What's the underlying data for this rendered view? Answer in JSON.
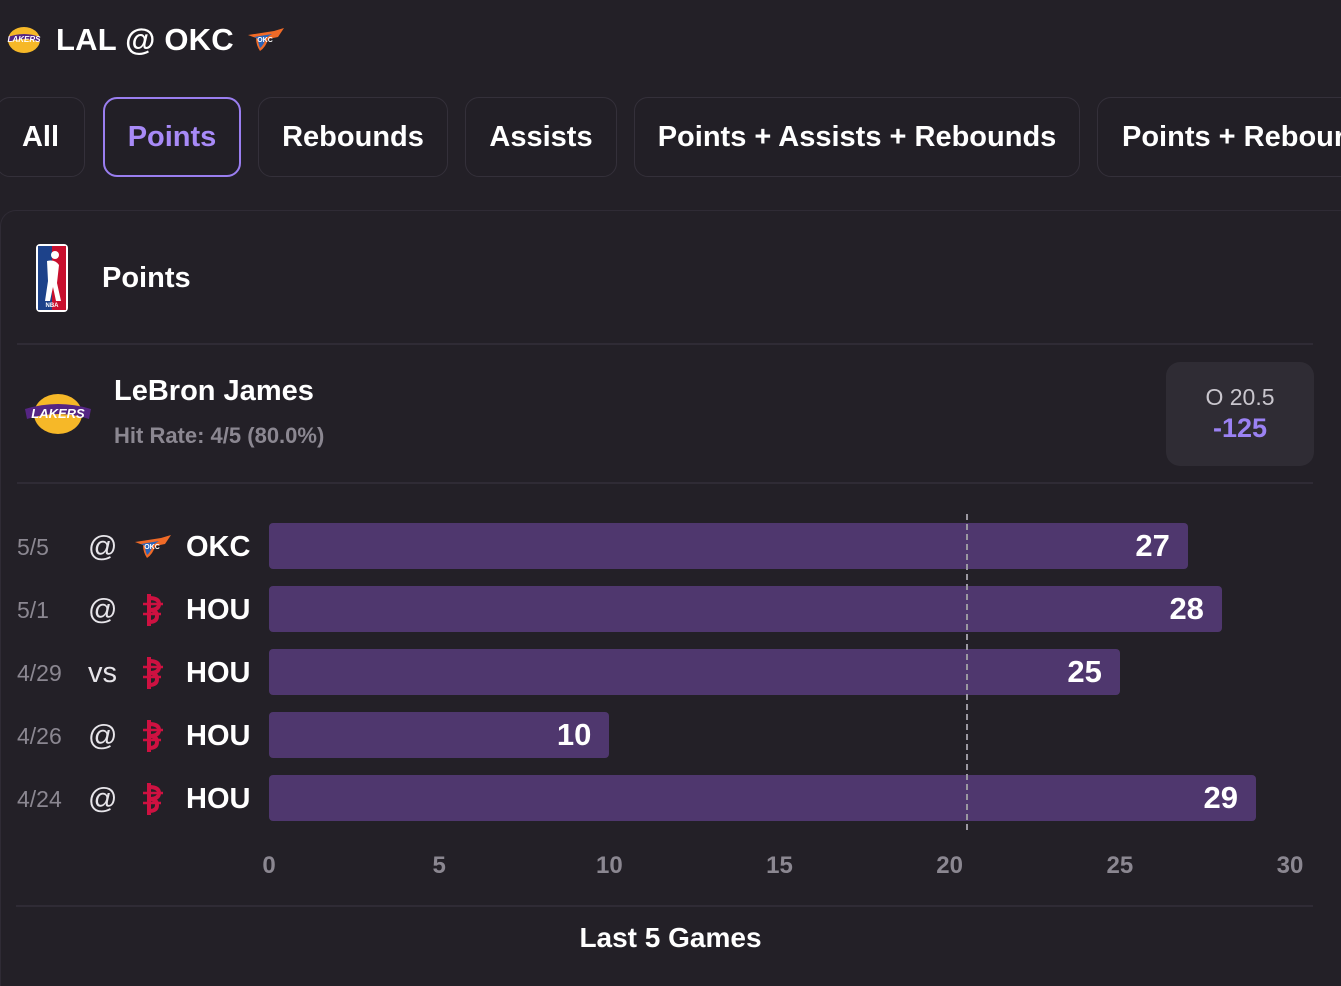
{
  "header": {
    "matchup": "LAL @ OKC",
    "home_logo_icon": "lakers-logo-icon",
    "away_logo_icon": "thunder-logo-icon"
  },
  "tabs": [
    {
      "label": "All",
      "active": false
    },
    {
      "label": "Points",
      "active": true
    },
    {
      "label": "Rebounds",
      "active": false
    },
    {
      "label": "Assists",
      "active": false
    },
    {
      "label": "Points + Assists + Rebounds",
      "active": false
    },
    {
      "label": "Points + Rebour",
      "active": false
    }
  ],
  "card": {
    "title": "Points",
    "league_icon": "nba-logo-icon"
  },
  "player": {
    "name": "LeBron James",
    "hit_rate": "Hit Rate: 4/5 (80.0%)",
    "odds_line": "O 20.5",
    "odds_price": "-125"
  },
  "colors": {
    "background": "#232027",
    "bar": "#4f376e",
    "accent": "#a88af7",
    "muted_text": "#8b8791",
    "rockets_red": "#ce1141"
  },
  "chart_data": {
    "type": "bar",
    "orientation": "horizontal",
    "categories": [
      "5/5",
      "5/1",
      "4/29",
      "4/26",
      "4/24"
    ],
    "games": [
      {
        "date": "5/5",
        "loc": "@",
        "opp": "OKC",
        "opp_icon": "thunder-logo-icon"
      },
      {
        "date": "5/1",
        "loc": "@",
        "opp": "HOU",
        "opp_icon": "rockets-logo-icon"
      },
      {
        "date": "4/29",
        "loc": "vs",
        "opp": "HOU",
        "opp_icon": "rockets-logo-icon"
      },
      {
        "date": "4/26",
        "loc": "@",
        "opp": "HOU",
        "opp_icon": "rockets-logo-icon"
      },
      {
        "date": "4/24",
        "loc": "@",
        "opp": "HOU",
        "opp_icon": "rockets-logo-icon"
      }
    ],
    "values": [
      27,
      28,
      25,
      10,
      29
    ],
    "threshold": 20.5,
    "xlim": [
      0,
      30
    ],
    "xticks": [
      "0",
      "5",
      "10",
      "15",
      "20",
      "25",
      "30"
    ],
    "grid": false,
    "footer": "Last 5 Games"
  }
}
